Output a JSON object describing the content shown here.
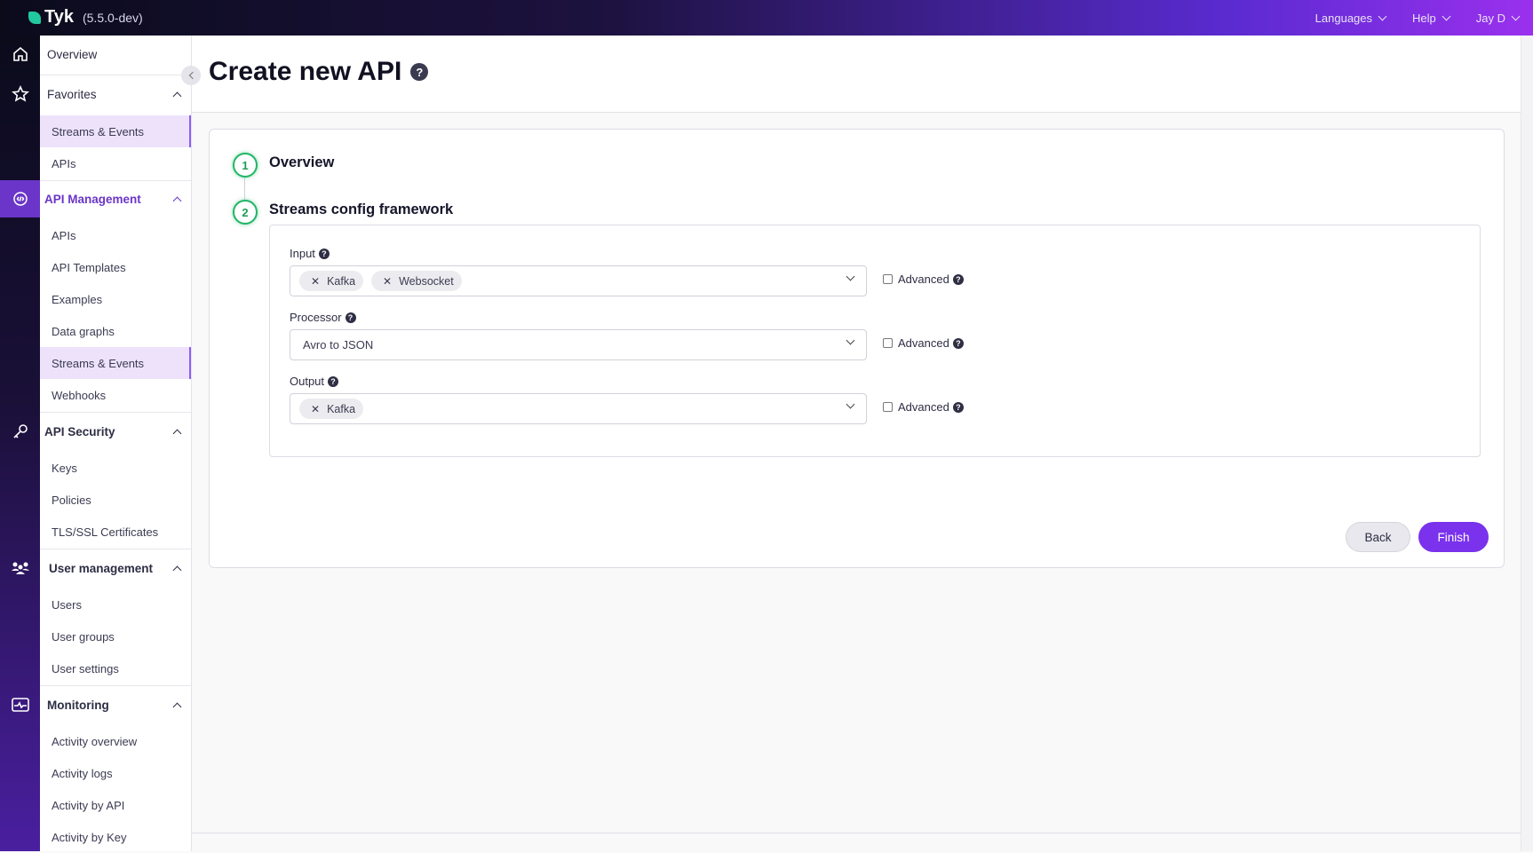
{
  "app": {
    "name": "Tyk",
    "version": "(5.5.0-dev)"
  },
  "topnav": {
    "languages": "Languages",
    "help": "Help",
    "user": "Jay D"
  },
  "sidebar": {
    "overview": "Overview",
    "favorites": {
      "label": "Favorites",
      "items": [
        "Streams & Events",
        "APIs"
      ]
    },
    "api_management": {
      "label": "API Management",
      "items": [
        "APIs",
        "API Templates",
        "Examples",
        "Data graphs",
        "Streams & Events",
        "Webhooks"
      ]
    },
    "api_security": {
      "label": "API Security",
      "items": [
        "Keys",
        "Policies",
        "TLS/SSL Certificates"
      ]
    },
    "user_management": {
      "label": "User management",
      "items": [
        "Users",
        "User groups",
        "User settings"
      ]
    },
    "monitoring": {
      "label": "Monitoring",
      "items": [
        "Activity overview",
        "Activity logs",
        "Activity by API",
        "Activity by Key"
      ]
    }
  },
  "page": {
    "title": "Create new API",
    "help": "?"
  },
  "steps": [
    {
      "number": "1",
      "title": "Overview"
    },
    {
      "number": "2",
      "title": "Streams config framework"
    }
  ],
  "form": {
    "input": {
      "label": "Input",
      "tags": [
        "Kafka",
        "Websocket"
      ],
      "advanced": "Advanced",
      "advanced_checked": false
    },
    "processor": {
      "label": "Processor",
      "value": "Avro to JSON",
      "advanced": "Advanced",
      "advanced_checked": false
    },
    "output": {
      "label": "Output",
      "tags": [
        "Kafka"
      ],
      "advanced": "Advanced",
      "advanced_checked": false
    }
  },
  "buttons": {
    "back": "Back",
    "finish": "Finish"
  },
  "colors": {
    "accent": "#7a32ec",
    "step": "#22b567",
    "selected": "#eee2fb"
  }
}
